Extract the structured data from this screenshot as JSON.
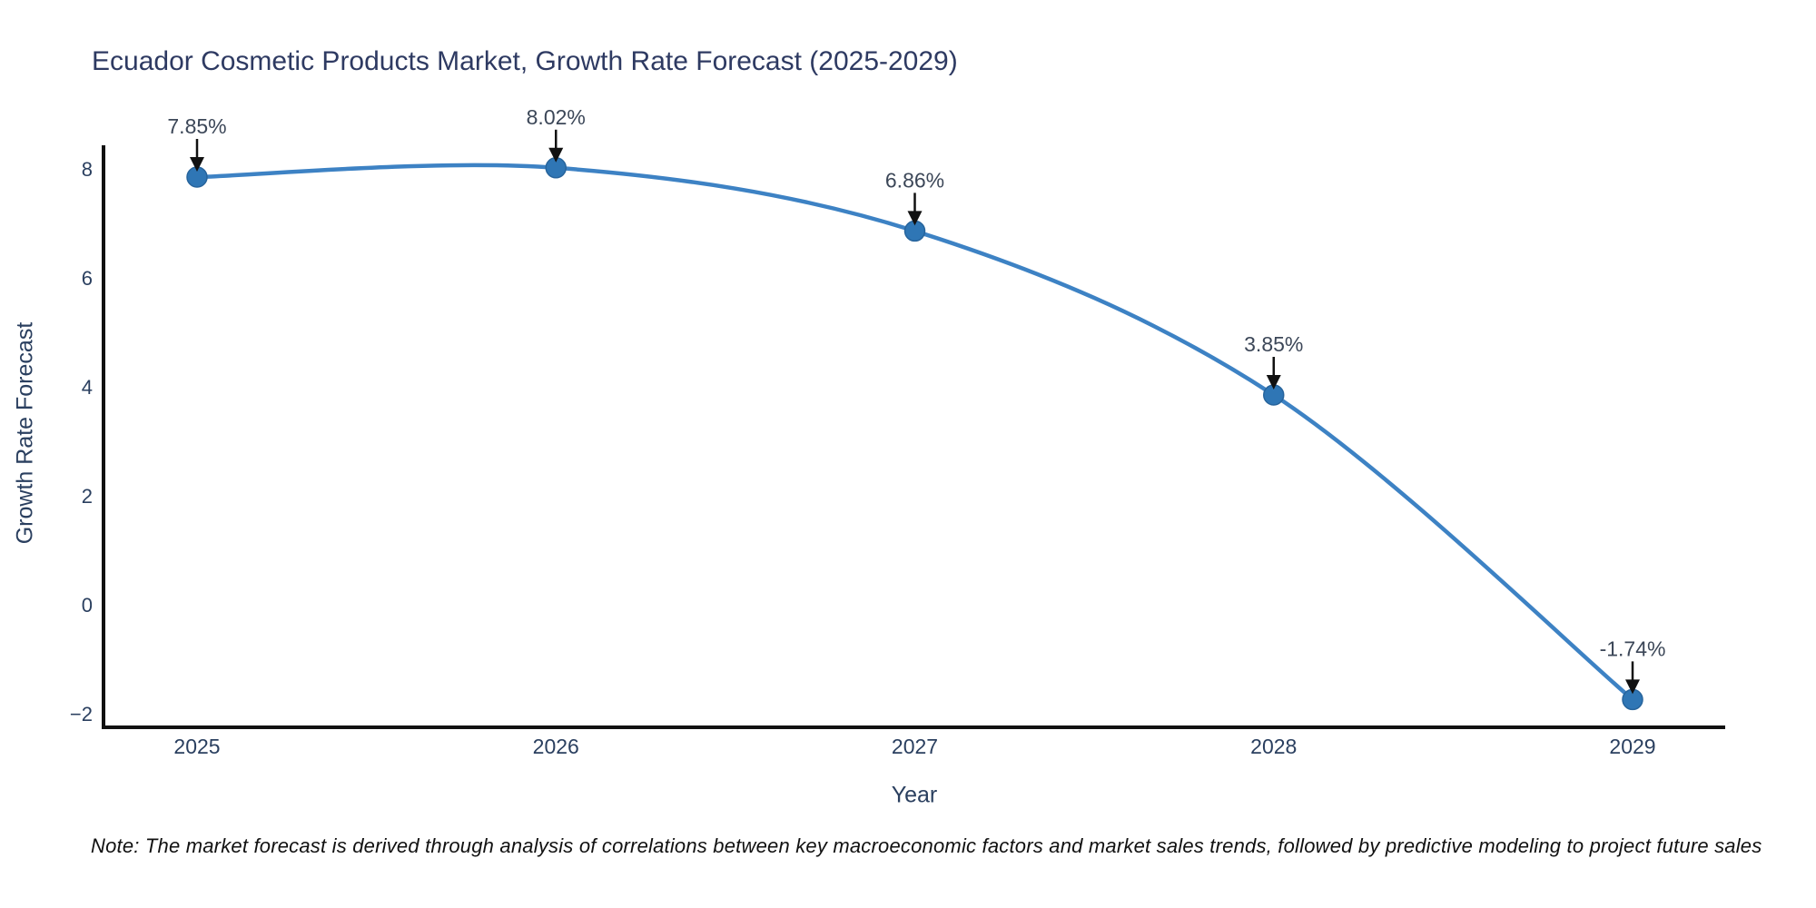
{
  "title": "Ecuador Cosmetic Products Market, Growth Rate Forecast (2025-2029)",
  "note": "Note: The market forecast is derived through analysis of correlations between key macroeconomic factors and market sales trends, followed by predictive modeling to project future sales",
  "chart_data": {
    "type": "line",
    "title": "Ecuador Cosmetic Products Market, Growth Rate Forecast (2025-2029)",
    "xlabel": "Year",
    "ylabel": "Growth Rate Forecast",
    "line_shape": "spline",
    "grid": false,
    "legend": "none",
    "x": [
      2025,
      2026,
      2027,
      2028,
      2029
    ],
    "values": [
      7.85,
      8.02,
      6.86,
      3.85,
      -1.74
    ],
    "point_labels": [
      "7.85%",
      "8.02%",
      "6.86%",
      "3.85%",
      "-1.74%"
    ],
    "x_tick_labels": [
      "2025",
      "2026",
      "2027",
      "2028",
      "2029"
    ],
    "y_ticks": [
      8,
      6,
      4,
      2,
      0,
      -2
    ],
    "y_tick_labels": [
      "8",
      "6",
      "4",
      "2",
      "0",
      "−2"
    ],
    "ylim": [
      -2.25,
      8.43
    ],
    "colors": {
      "line": "#3d82c4",
      "marker": "#2f76b5",
      "marker_outline": "#27649c",
      "axis": "#111111",
      "tick_text": "#2a3f5f",
      "annotation_text": "#3c4758",
      "annotation_arrow": "#111111",
      "background": "#ffffff"
    }
  }
}
